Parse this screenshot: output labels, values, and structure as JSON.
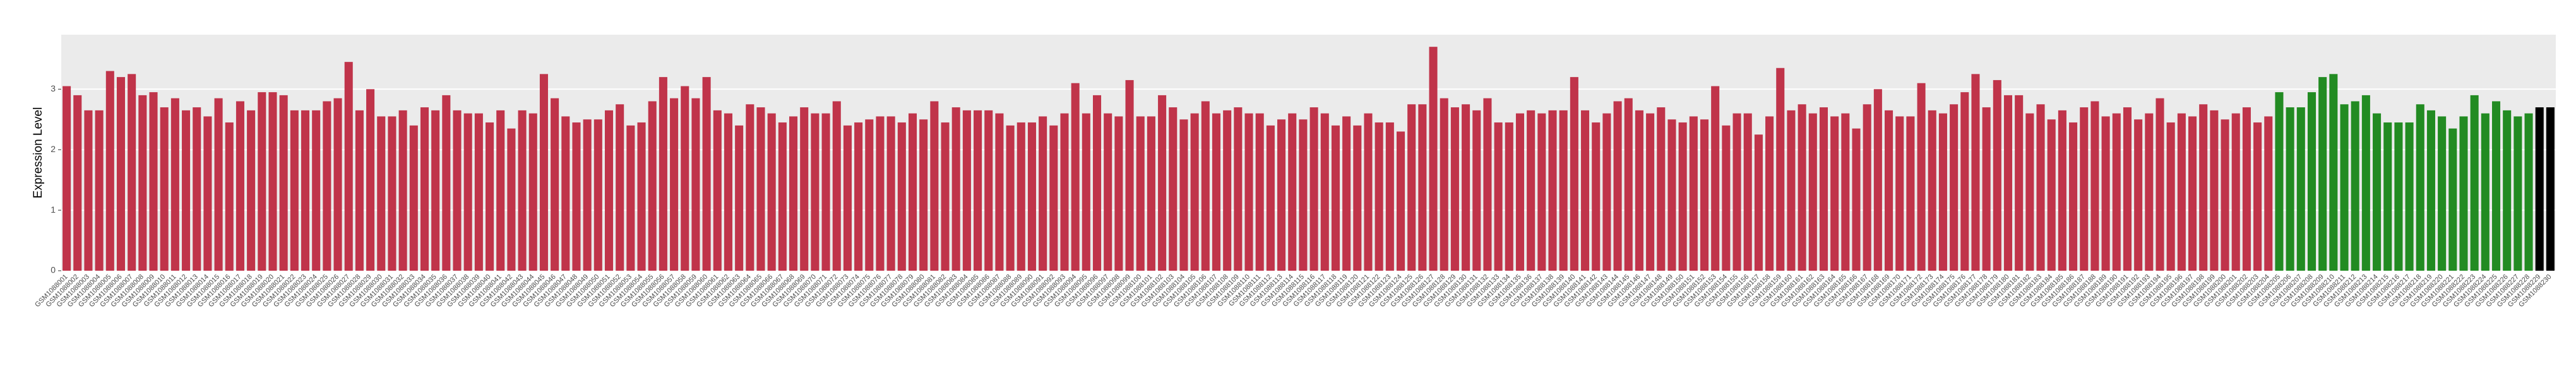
{
  "chart_data": {
    "type": "bar",
    "y_label": "Expression Level",
    "ylim": [
      0,
      3.9
    ],
    "yticks": [
      0,
      1,
      2,
      3
    ],
    "grid": true,
    "categories": [
      "GSM1088001",
      "GSM1088002",
      "GSM1088003",
      "GSM1088004",
      "GSM1088005",
      "GSM1088006",
      "GSM1088007",
      "GSM1088008",
      "GSM1088009",
      "GSM1088010",
      "GSM1088011",
      "GSM1088012",
      "GSM1088013",
      "GSM1088014",
      "GSM1088015",
      "GSM1088016",
      "GSM1088017",
      "GSM1088018",
      "GSM1088019",
      "GSM1088020",
      "GSM1088021",
      "GSM1088022",
      "GSM1088023",
      "GSM1088024",
      "GSM1088025",
      "GSM1088026",
      "GSM1088027",
      "GSM1088028",
      "GSM1088029",
      "GSM1088030",
      "GSM1088031",
      "GSM1088032",
      "GSM1088033",
      "GSM1088034",
      "GSM1088035",
      "GSM1088036",
      "GSM1088037",
      "GSM1088038",
      "GSM1088039",
      "GSM1088040",
      "GSM1088041",
      "GSM1088042",
      "GSM1088043",
      "GSM1088044",
      "GSM1088045",
      "GSM1088046",
      "GSM1088047",
      "GSM1088048",
      "GSM1088049",
      "GSM1088050",
      "GSM1088051",
      "GSM1088052",
      "GSM1088053",
      "GSM1088054",
      "GSM1088055",
      "GSM1088056",
      "GSM1088057",
      "GSM1088058",
      "GSM1088059",
      "GSM1088060",
      "GSM1088061",
      "GSM1088062",
      "GSM1088063",
      "GSM1088064",
      "GSM1088065",
      "GSM1088066",
      "GSM1088067",
      "GSM1088068",
      "GSM1088069",
      "GSM1088070",
      "GSM1088071",
      "GSM1088072",
      "GSM1088073",
      "GSM1088074",
      "GSM1088075",
      "GSM1088076",
      "GSM1088077",
      "GSM1088078",
      "GSM1088079",
      "GSM1088080",
      "GSM1088081",
      "GSM1088082",
      "GSM1088083",
      "GSM1088084",
      "GSM1088085",
      "GSM1088086",
      "GSM1088087",
      "GSM1088088",
      "GSM1088089",
      "GSM1088090",
      "GSM1088091",
      "GSM1088092",
      "GSM1088093",
      "GSM1088094",
      "GSM1088095",
      "GSM1088096",
      "GSM1088097",
      "GSM1088098",
      "GSM1088099",
      "GSM1088100",
      "GSM1088101",
      "GSM1088102",
      "GSM1088103",
      "GSM1088104",
      "GSM1088105",
      "GSM1088106",
      "GSM1088107",
      "GSM1088108",
      "GSM1088109",
      "GSM1088110",
      "GSM1088111",
      "GSM1088112",
      "GSM1088113",
      "GSM1088114",
      "GSM1088115",
      "GSM1088116",
      "GSM1088117",
      "GSM1088118",
      "GSM1088119",
      "GSM1088120",
      "GSM1088121",
      "GSM1088122",
      "GSM1088123",
      "GSM1088124",
      "GSM1088125",
      "GSM1088126",
      "GSM1088127",
      "GSM1088128",
      "GSM1088129",
      "GSM1088130",
      "GSM1088131",
      "GSM1088132",
      "GSM1088133",
      "GSM1088134",
      "GSM1088135",
      "GSM1088136",
      "GSM1088137",
      "GSM1088138",
      "GSM1088139",
      "GSM1088140",
      "GSM1088141",
      "GSM1088142",
      "GSM1088143",
      "GSM1088144",
      "GSM1088145",
      "GSM1088146",
      "GSM1088147",
      "GSM1088148",
      "GSM1088149",
      "GSM1088150",
      "GSM1088151",
      "GSM1088152",
      "GSM1088153",
      "GSM1088154",
      "GSM1088155",
      "GSM1088156",
      "GSM1088157",
      "GSM1088158",
      "GSM1088159",
      "GSM1088160",
      "GSM1088161",
      "GSM1088162",
      "GSM1088163",
      "GSM1088164",
      "GSM1088165",
      "GSM1088166",
      "GSM1088167",
      "GSM1088168",
      "GSM1088169",
      "GSM1088170",
      "GSM1088171",
      "GSM1088172",
      "GSM1088173",
      "GSM1088174",
      "GSM1088175",
      "GSM1088176",
      "GSM1088177",
      "GSM1088178",
      "GSM1088179",
      "GSM1088180",
      "GSM1088181",
      "GSM1088182",
      "GSM1088183",
      "GSM1088184",
      "GSM1088185",
      "GSM1088186",
      "GSM1088187",
      "GSM1088188",
      "GSM1088189",
      "GSM1088190",
      "GSM1088191",
      "GSM1088192",
      "GSM1088193",
      "GSM1088194",
      "GSM1088195",
      "GSM1088196",
      "GSM1088197",
      "GSM1088198",
      "GSM1088199",
      "GSM1088200",
      "GSM1088201",
      "GSM1088202",
      "GSM1088203",
      "GSM1088204",
      "GSM1088205",
      "GSM1088206",
      "GSM1088207",
      "GSM1088208",
      "GSM1088209",
      "GSM1088210",
      "GSM1088211",
      "GSM1088212",
      "GSM1088213",
      "GSM1088214",
      "GSM1088215",
      "GSM1088216",
      "GSM1088217",
      "GSM1088218",
      "GSM1088219",
      "GSM1088220",
      "GSM1088221",
      "GSM1088222",
      "GSM1088223",
      "GSM1088224",
      "GSM1088225",
      "GSM1088226",
      "GSM1088227",
      "GSM1088228",
      "GSM1088229",
      "GSM1088230"
    ],
    "values": [
      3.05,
      2.9,
      2.65,
      2.65,
      3.3,
      3.2,
      3.25,
      2.9,
      2.95,
      2.7,
      2.85,
      2.65,
      2.7,
      2.55,
      2.85,
      2.45,
      2.8,
      2.65,
      2.95,
      2.95,
      2.9,
      2.65,
      2.65,
      2.65,
      2.8,
      2.85,
      3.45,
      2.65,
      3.0,
      2.55,
      2.55,
      2.65,
      2.4,
      2.7,
      2.65,
      2.9,
      2.65,
      2.6,
      2.6,
      2.45,
      2.65,
      2.35,
      2.65,
      2.6,
      3.25,
      2.85,
      2.55,
      2.45,
      2.5,
      2.5,
      2.65,
      2.75,
      2.4,
      2.45,
      2.8,
      3.2,
      2.85,
      3.05,
      2.85,
      3.2,
      2.65,
      2.6,
      2.4,
      2.75,
      2.7,
      2.6,
      2.45,
      2.55,
      2.7,
      2.6,
      2.6,
      2.8,
      2.4,
      2.45,
      2.5,
      2.55,
      2.55,
      2.45,
      2.6,
      2.5,
      2.8,
      2.45,
      2.7,
      2.65,
      2.65,
      2.65,
      2.6,
      2.4,
      2.45,
      2.45,
      2.55,
      2.4,
      2.6,
      3.1,
      2.6,
      2.9,
      2.6,
      2.55,
      3.15,
      2.55,
      2.55,
      2.9,
      2.7,
      2.5,
      2.6,
      2.8,
      2.6,
      2.65,
      2.7,
      2.6,
      2.6,
      2.4,
      2.5,
      2.6,
      2.5,
      2.7,
      2.6,
      2.4,
      2.55,
      2.4,
      2.6,
      2.45,
      2.45,
      2.3,
      2.75,
      2.75,
      3.7,
      2.85,
      2.7,
      2.75,
      2.65,
      2.85,
      2.45,
      2.45,
      2.6,
      2.65,
      2.6,
      2.65,
      2.65,
      3.2,
      2.65,
      2.45,
      2.6,
      2.8,
      2.85,
      2.65,
      2.6,
      2.7,
      2.5,
      2.45,
      2.55,
      2.5,
      3.05,
      2.4,
      2.6,
      2.6,
      2.25,
      2.55,
      3.35,
      2.65,
      2.75,
      2.6,
      2.7,
      2.55,
      2.6,
      2.35,
      2.75,
      3.0,
      2.65,
      2.55,
      2.55,
      3.1,
      2.65,
      2.6,
      2.75,
      2.95,
      3.25,
      2.7,
      3.15,
      2.9,
      2.9,
      2.6,
      2.75,
      2.5,
      2.65,
      2.45,
      2.7,
      2.8,
      2.55,
      2.6,
      2.7,
      2.5,
      2.6,
      2.85,
      2.45,
      2.6,
      2.55,
      2.75,
      2.65,
      2.5,
      2.6,
      2.7,
      2.45,
      2.55,
      2.95,
      2.7,
      2.7,
      2.95,
      3.2,
      3.25,
      2.75,
      2.8,
      2.9,
      2.6,
      2.45,
      2.45,
      2.45,
      2.75,
      2.65,
      2.55,
      2.35,
      2.55,
      2.9,
      2.6,
      2.8,
      2.65,
      2.55,
      2.6,
      2.7,
      2.7
    ],
    "colors": [
      "#c0344a",
      "#c0344a",
      "#c0344a",
      "#c0344a",
      "#c0344a",
      "#c0344a",
      "#c0344a",
      "#c0344a",
      "#c0344a",
      "#c0344a",
      "#c0344a",
      "#c0344a",
      "#c0344a",
      "#c0344a",
      "#c0344a",
      "#c0344a",
      "#c0344a",
      "#c0344a",
      "#c0344a",
      "#c0344a",
      "#c0344a",
      "#c0344a",
      "#c0344a",
      "#c0344a",
      "#c0344a",
      "#c0344a",
      "#c0344a",
      "#c0344a",
      "#c0344a",
      "#c0344a",
      "#c0344a",
      "#c0344a",
      "#c0344a",
      "#c0344a",
      "#c0344a",
      "#c0344a",
      "#c0344a",
      "#c0344a",
      "#c0344a",
      "#c0344a",
      "#c0344a",
      "#c0344a",
      "#c0344a",
      "#c0344a",
      "#c0344a",
      "#c0344a",
      "#c0344a",
      "#c0344a",
      "#c0344a",
      "#c0344a",
      "#c0344a",
      "#c0344a",
      "#c0344a",
      "#c0344a",
      "#c0344a",
      "#c0344a",
      "#c0344a",
      "#c0344a",
      "#c0344a",
      "#c0344a",
      "#c0344a",
      "#c0344a",
      "#c0344a",
      "#c0344a",
      "#c0344a",
      "#c0344a",
      "#c0344a",
      "#c0344a",
      "#c0344a",
      "#c0344a",
      "#c0344a",
      "#c0344a",
      "#c0344a",
      "#c0344a",
      "#c0344a",
      "#c0344a",
      "#c0344a",
      "#c0344a",
      "#c0344a",
      "#c0344a",
      "#c0344a",
      "#c0344a",
      "#c0344a",
      "#c0344a",
      "#c0344a",
      "#c0344a",
      "#c0344a",
      "#c0344a",
      "#c0344a",
      "#c0344a",
      "#c0344a",
      "#c0344a",
      "#c0344a",
      "#c0344a",
      "#c0344a",
      "#c0344a",
      "#c0344a",
      "#c0344a",
      "#c0344a",
      "#c0344a",
      "#c0344a",
      "#c0344a",
      "#c0344a",
      "#c0344a",
      "#c0344a",
      "#c0344a",
      "#c0344a",
      "#c0344a",
      "#c0344a",
      "#c0344a",
      "#c0344a",
      "#c0344a",
      "#c0344a",
      "#c0344a",
      "#c0344a",
      "#c0344a",
      "#c0344a",
      "#c0344a",
      "#c0344a",
      "#c0344a",
      "#c0344a",
      "#c0344a",
      "#c0344a",
      "#c0344a",
      "#c0344a",
      "#c0344a",
      "#c0344a",
      "#c0344a",
      "#c0344a",
      "#c0344a",
      "#c0344a",
      "#c0344a",
      "#c0344a",
      "#c0344a",
      "#c0344a",
      "#c0344a",
      "#c0344a",
      "#c0344a",
      "#c0344a",
      "#c0344a",
      "#c0344a",
      "#c0344a",
      "#c0344a",
      "#c0344a",
      "#c0344a",
      "#c0344a",
      "#c0344a",
      "#c0344a",
      "#c0344a",
      "#c0344a",
      "#c0344a",
      "#c0344a",
      "#c0344a",
      "#c0344a",
      "#c0344a",
      "#c0344a",
      "#c0344a",
      "#c0344a",
      "#c0344a",
      "#c0344a",
      "#c0344a",
      "#c0344a",
      "#c0344a",
      "#c0344a",
      "#c0344a",
      "#c0344a",
      "#c0344a",
      "#c0344a",
      "#c0344a",
      "#c0344a",
      "#c0344a",
      "#c0344a",
      "#c0344a",
      "#c0344a",
      "#c0344a",
      "#c0344a",
      "#c0344a",
      "#c0344a",
      "#c0344a",
      "#c0344a",
      "#c0344a",
      "#c0344a",
      "#c0344a",
      "#c0344a",
      "#c0344a",
      "#c0344a",
      "#c0344a",
      "#c0344a",
      "#c0344a",
      "#c0344a",
      "#c0344a",
      "#c0344a",
      "#c0344a",
      "#c0344a",
      "#c0344a",
      "#c0344a",
      "#c0344a",
      "#c0344a",
      "#c0344a",
      "#c0344a",
      "#c0344a",
      "#c0344a",
      "#c0344a",
      "#c0344a",
      "#228b22",
      "#228b22",
      "#228b22",
      "#228b22",
      "#228b22",
      "#228b22",
      "#228b22",
      "#228b22",
      "#228b22",
      "#228b22",
      "#228b22",
      "#228b22",
      "#228b22",
      "#228b22",
      "#228b22",
      "#228b22",
      "#228b22",
      "#228b22",
      "#228b22",
      "#228b22",
      "#228b22",
      "#228b22",
      "#228b22",
      "#228b22"
    ]
  }
}
